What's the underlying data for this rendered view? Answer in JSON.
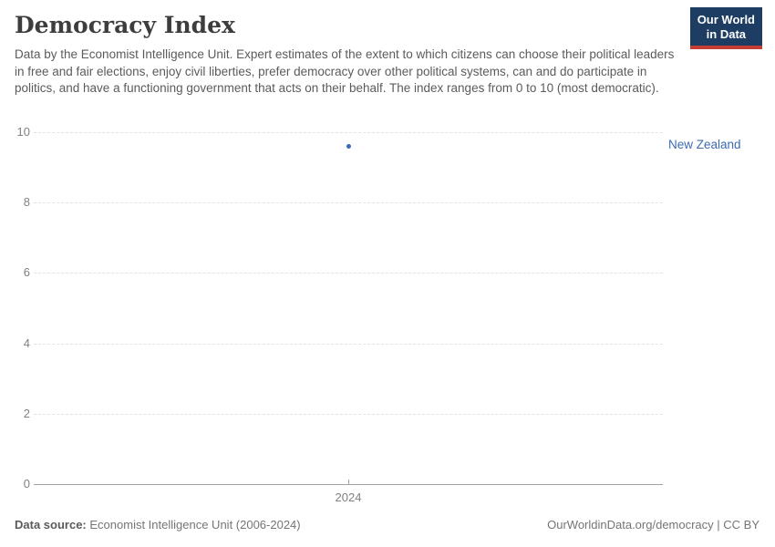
{
  "header": {
    "title": "Democracy Index",
    "subtitle": "Data by the Economist Intelligence Unit. Expert estimates of the extent to which citizens can choose their political leaders in free and fair elections, enjoy civil liberties, prefer democracy over other political systems, can and do participate in politics, and have a functioning government that acts on their behalf. The index ranges from 0 to 10 (most democratic)."
  },
  "logo": {
    "line1": "Our World",
    "line2": "in Data",
    "bg_color": "#1d3d63",
    "accent_color": "#c53d33"
  },
  "chart_data": {
    "type": "scatter",
    "title": "Democracy Index",
    "series": [
      {
        "name": "New Zealand",
        "x": [
          2024
        ],
        "values": [
          9.61
        ],
        "color": "#3d6bb3"
      }
    ],
    "categories": [
      "2024"
    ],
    "xticks": [
      "2024"
    ],
    "yticks": [
      0,
      2,
      4,
      6,
      8,
      10
    ],
    "ylim": [
      0,
      10
    ],
    "xlabel": "",
    "ylabel": "",
    "grid": "horizontal-dashed",
    "gridline_color": "#e3e3e3",
    "axis_color": "#a1a1a1",
    "tick_label_color": "#818181",
    "legend_position": "entity-label-right"
  },
  "footer": {
    "datasource_label": "Data source:",
    "datasource_value": "Economist Intelligence Unit (2006-2024)",
    "rights": "OurWorldinData.org/democracy | CC BY"
  }
}
